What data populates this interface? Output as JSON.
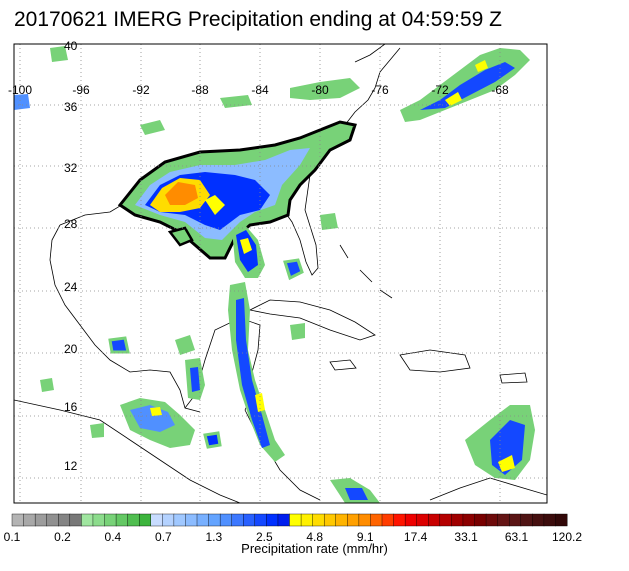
{
  "title": "20170621 IMERG Precipitation ending at 04:59:59 Z",
  "map": {
    "lat_labels": [
      "40",
      "36",
      "32",
      "28",
      "24",
      "20",
      "16",
      "12"
    ],
    "lon_labels": [
      "-100",
      "-96",
      "-92",
      "-88",
      "-84",
      "-80",
      "-76",
      "-72",
      "-68"
    ]
  },
  "colorbar": {
    "label": "Precipitation rate (mm/hr)",
    "tick_labels": [
      "0.1",
      "0.2",
      "0.4",
      "0.7",
      "1.3",
      "2.5",
      "4.8",
      "9.1",
      "17.4",
      "33.1",
      "63.1",
      "120.2"
    ],
    "colors": [
      "#b4b4b4",
      "#a8a8a8",
      "#9c9c9c",
      "#909090",
      "#848484",
      "#787878",
      "#a0e6a0",
      "#8cdc8c",
      "#78d278",
      "#64c864",
      "#50be50",
      "#3cb43c",
      "#c8dcff",
      "#b4d2ff",
      "#a0c8ff",
      "#8cbcff",
      "#78b0ff",
      "#64a4ff",
      "#5090ff",
      "#3c78ff",
      "#2860ff",
      "#1448ff",
      "#0030ff",
      "#001eee",
      "#ffff00",
      "#fff000",
      "#ffdc00",
      "#ffc800",
      "#ffb400",
      "#ffa000",
      "#ff8c00",
      "#ff6400",
      "#ff3c00",
      "#ff1400",
      "#ee0000",
      "#dc0000",
      "#c80000",
      "#b40000",
      "#a00000",
      "#8c0000",
      "#780000",
      "#6e0a0a",
      "#641414",
      "#5a1414",
      "#501414",
      "#461010",
      "#3c0c0c",
      "#320808"
    ]
  }
}
